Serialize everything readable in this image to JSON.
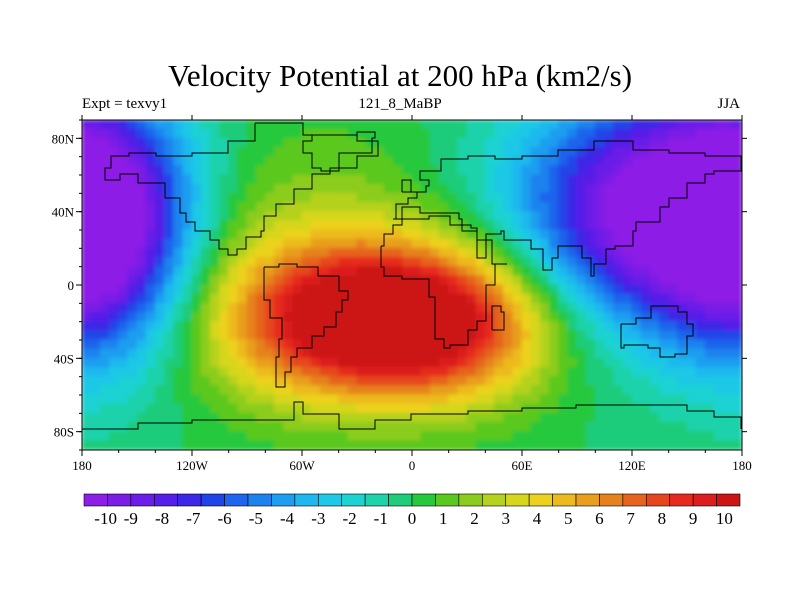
{
  "title": "Velocity Potential at 200 hPa (km2/s)",
  "left_label": "Expt = texvy1",
  "center_label": "121_8_MaBP",
  "right_label": "JJA",
  "chart_data": {
    "type": "heatmap",
    "title": "Velocity Potential at 200 hPa (km2/s)",
    "xlim": [
      -180,
      180
    ],
    "ylim": [
      -90,
      90
    ],
    "x_ticks": [
      {
        "value": -180,
        "label": "180"
      },
      {
        "value": -120,
        "label": "120W"
      },
      {
        "value": -60,
        "label": "60W"
      },
      {
        "value": 0,
        "label": "0"
      },
      {
        "value": 60,
        "label": "60E"
      },
      {
        "value": 120,
        "label": "120E"
      },
      {
        "value": 180,
        "label": "180"
      }
    ],
    "y_ticks": [
      {
        "value": 80,
        "label": "80N"
      },
      {
        "value": 40,
        "label": "40N"
      },
      {
        "value": 0,
        "label": "0"
      },
      {
        "value": -40,
        "label": "40S"
      },
      {
        "value": -80,
        "label": "80S"
      }
    ],
    "colorbar": {
      "min": -10.5,
      "max": 10.5,
      "labels": [
        "-10",
        "-9",
        "-8",
        "-7",
        "-6",
        "-5",
        "-4",
        "-3",
        "-2",
        "-1",
        "0",
        "1",
        "2",
        "3",
        "4",
        "5",
        "6",
        "7",
        "8",
        "9",
        "10"
      ],
      "colors": [
        "#8c1ee6",
        "#7a1ee6",
        "#6a1ee8",
        "#561ee8",
        "#3c28e6",
        "#2044e8",
        "#1e64ec",
        "#1e82ee",
        "#1e9ef0",
        "#1eb8ee",
        "#1ec8e6",
        "#1ed2d2",
        "#1ed2aa",
        "#1ecc7a",
        "#28c83c",
        "#5ac81e",
        "#8ccc1e",
        "#b4d21e",
        "#d6d61e",
        "#ecd21e",
        "#ecba1e",
        "#e89e1e",
        "#e6821e",
        "#e6641e",
        "#e6461e",
        "#e62a1e",
        "#dc1e1e",
        "#cc1414"
      ]
    },
    "field": {
      "description_of_features": "positive maximum over Atlantic/Africa near 0-30S, negative minima over Asia/west Pacific and east Pacific",
      "centers": [
        {
          "lon": -20,
          "lat": -20,
          "value": 10.5,
          "sx": 55,
          "sy": 28
        },
        {
          "lon": 20,
          "lat": -22,
          "value": 4.0,
          "sx": 45,
          "sy": 30
        },
        {
          "lon": -60,
          "lat": 10,
          "value": 2.5,
          "sx": 60,
          "sy": 50
        },
        {
          "lon": 135,
          "lat": 40,
          "value": -11,
          "sx": 55,
          "sy": 45
        },
        {
          "lon": -170,
          "lat": 30,
          "value": -9,
          "sx": 35,
          "sy": 50
        }
      ]
    }
  }
}
